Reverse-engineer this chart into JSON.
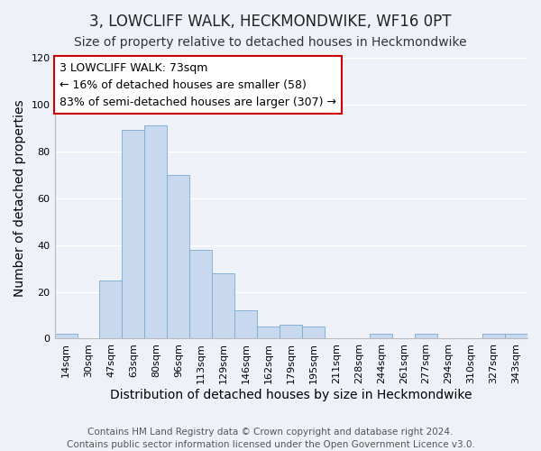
{
  "title": "3, LOWCLIFF WALK, HECKMONDWIKE, WF16 0PT",
  "subtitle": "Size of property relative to detached houses in Heckmondwike",
  "xlabel": "Distribution of detached houses by size in Heckmondwike",
  "ylabel": "Number of detached properties",
  "bar_color": "#c8d8ee",
  "bar_edge_color": "#7aaad0",
  "categories": [
    "14sqm",
    "30sqm",
    "47sqm",
    "63sqm",
    "80sqm",
    "96sqm",
    "113sqm",
    "129sqm",
    "146sqm",
    "162sqm",
    "179sqm",
    "195sqm",
    "211sqm",
    "228sqm",
    "244sqm",
    "261sqm",
    "277sqm",
    "294sqm",
    "310sqm",
    "327sqm",
    "343sqm"
  ],
  "values": [
    2,
    0,
    25,
    89,
    91,
    70,
    38,
    28,
    12,
    5,
    6,
    5,
    0,
    0,
    2,
    0,
    2,
    0,
    0,
    2,
    2
  ],
  "ylim": [
    0,
    120
  ],
  "yticks": [
    0,
    20,
    40,
    60,
    80,
    100,
    120
  ],
  "annotation_box_text": "3 LOWCLIFF WALK: 73sqm\n← 16% of detached houses are smaller (58)\n83% of semi-detached houses are larger (307) →",
  "annotation_box_color": "#ffffff",
  "annotation_box_edge_color": "#cc0000",
  "footer_line1": "Contains HM Land Registry data © Crown copyright and database right 2024.",
  "footer_line2": "Contains public sector information licensed under the Open Government Licence v3.0.",
  "background_color": "#eef2f8",
  "grid_color": "#ffffff",
  "title_fontsize": 12,
  "subtitle_fontsize": 10,
  "axis_label_fontsize": 10,
  "tick_fontsize": 8,
  "annotation_fontsize": 9,
  "footer_fontsize": 7.5
}
